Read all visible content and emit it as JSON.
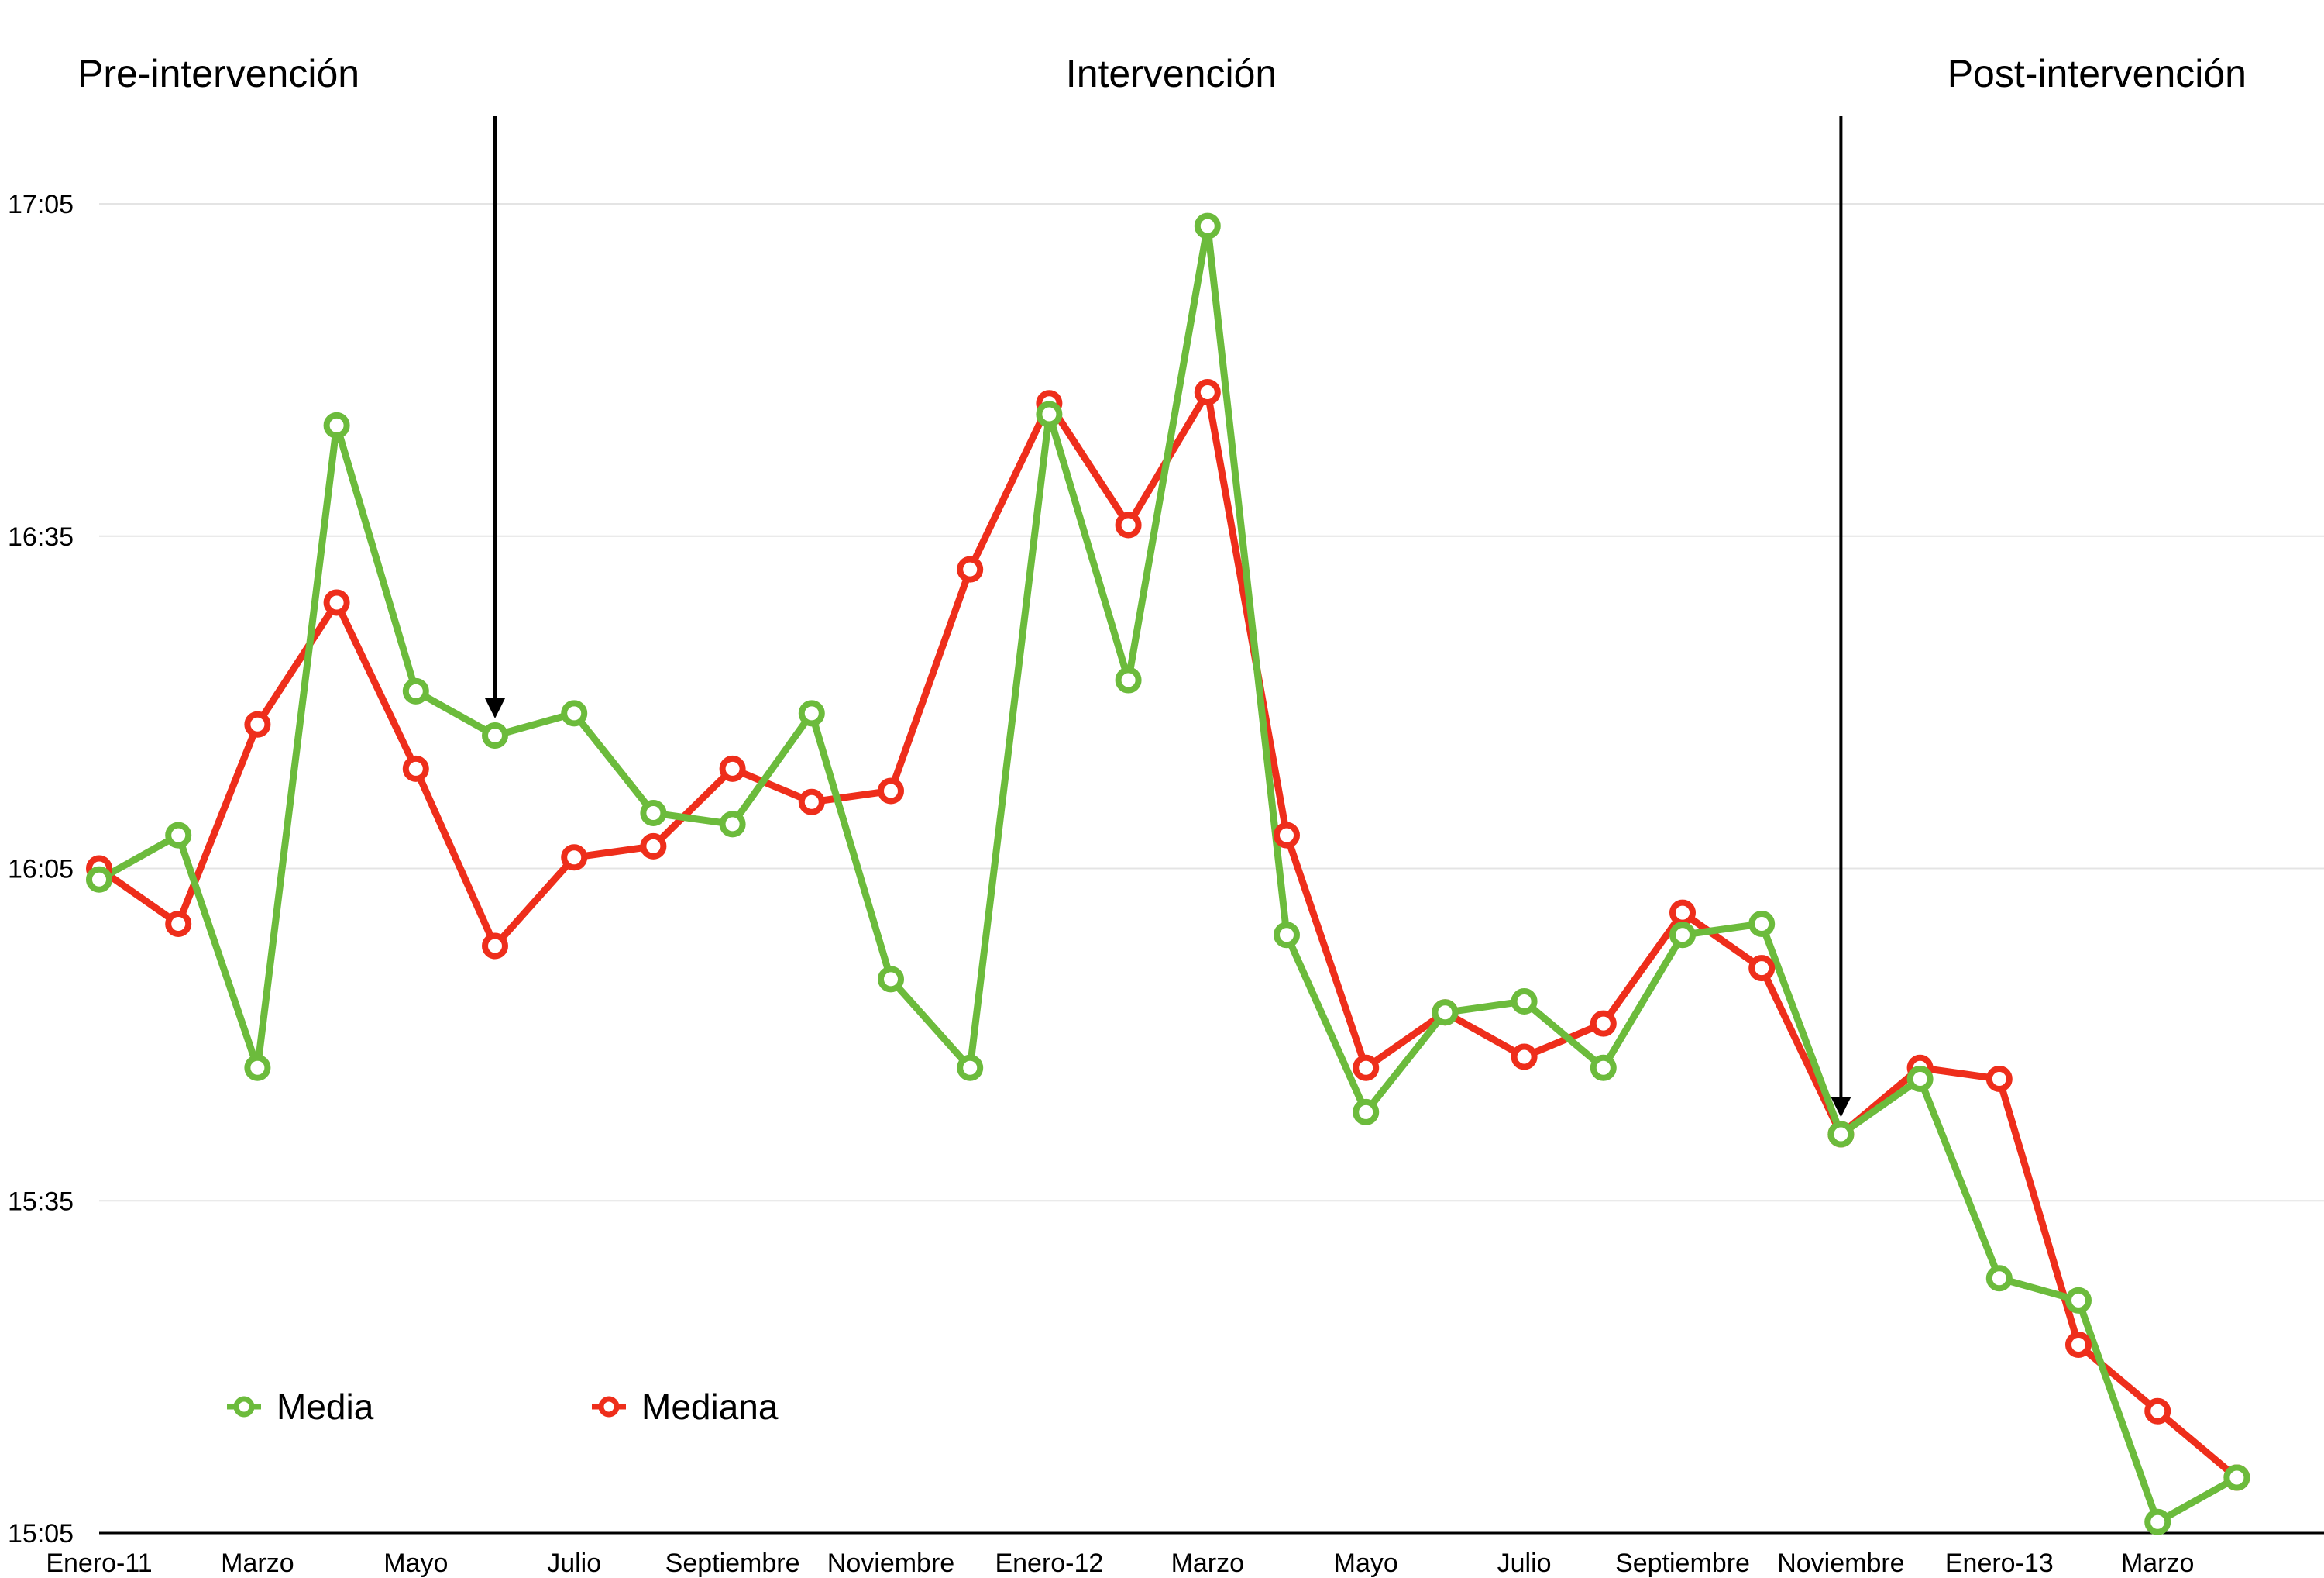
{
  "chart_data": {
    "type": "line",
    "title": "",
    "xlabel": "",
    "ylabel": "",
    "phases": [
      {
        "label": "Pre-intervención"
      },
      {
        "label": "Intervención"
      },
      {
        "label": "Post-intervención"
      }
    ],
    "y_ticks": [
      "15:05",
      "15:35",
      "16:05",
      "16:35",
      "17:05"
    ],
    "ylim_minutes": [
      905,
      1025
    ],
    "x_tick_labels": [
      "Enero-11",
      "Marzo",
      "Mayo",
      "Julio",
      "Septiembre",
      "Noviembre",
      "Enero-12",
      "Marzo",
      "Mayo",
      "Julio",
      "Septiembre",
      "Noviembre",
      "Enero-13",
      "Marzo"
    ],
    "categories": [
      "Ene-11",
      "Feb-11",
      "Mar-11",
      "Abr-11",
      "May-11",
      "Jun-11",
      "Jul-11",
      "Ago-11",
      "Sep-11",
      "Oct-11",
      "Nov-11",
      "Dic-11",
      "Ene-12",
      "Feb-12",
      "Mar-12",
      "Abr-12",
      "May-12",
      "Jun-12",
      "Jul-12",
      "Ago-12",
      "Sep-12",
      "Oct-12",
      "Nov-12",
      "Dic-12",
      "Ene-13",
      "Feb-13",
      "Mar-13",
      "Abr-13"
    ],
    "series": [
      {
        "name": "Media",
        "color": "#6cbb3c",
        "values": [
          964.0,
          968.0,
          947.0,
          1005.0,
          981.0,
          977.0,
          979.0,
          970.0,
          969.0,
          979.0,
          955.0,
          947.0,
          1006.0,
          982.0,
          1023.0,
          959.0,
          943.0,
          952.0,
          953.0,
          947.0,
          959.0,
          960.0,
          941.0,
          946.0,
          928.0,
          926.0,
          906.0,
          910.0
        ]
      },
      {
        "name": "Mediana",
        "color": "#ee2e1b",
        "values": [
          965.0,
          960.0,
          978.0,
          989.0,
          974.0,
          958.0,
          966.0,
          967.0,
          974.0,
          971.0,
          972.0,
          992.0,
          1007.0,
          996.0,
          1008.0,
          968.0,
          947.0,
          952.0,
          948.0,
          951.0,
          961.0,
          956.0,
          941.0,
          947.0,
          946.0,
          922.0,
          916.0,
          910.0
        ]
      }
    ],
    "legend": {
      "position": "bottom-left",
      "items": [
        "Media",
        "Mediana"
      ]
    },
    "grid": true,
    "intervention_markers": [
      {
        "category": "Jun-11"
      },
      {
        "category": "Nov-12"
      }
    ]
  }
}
